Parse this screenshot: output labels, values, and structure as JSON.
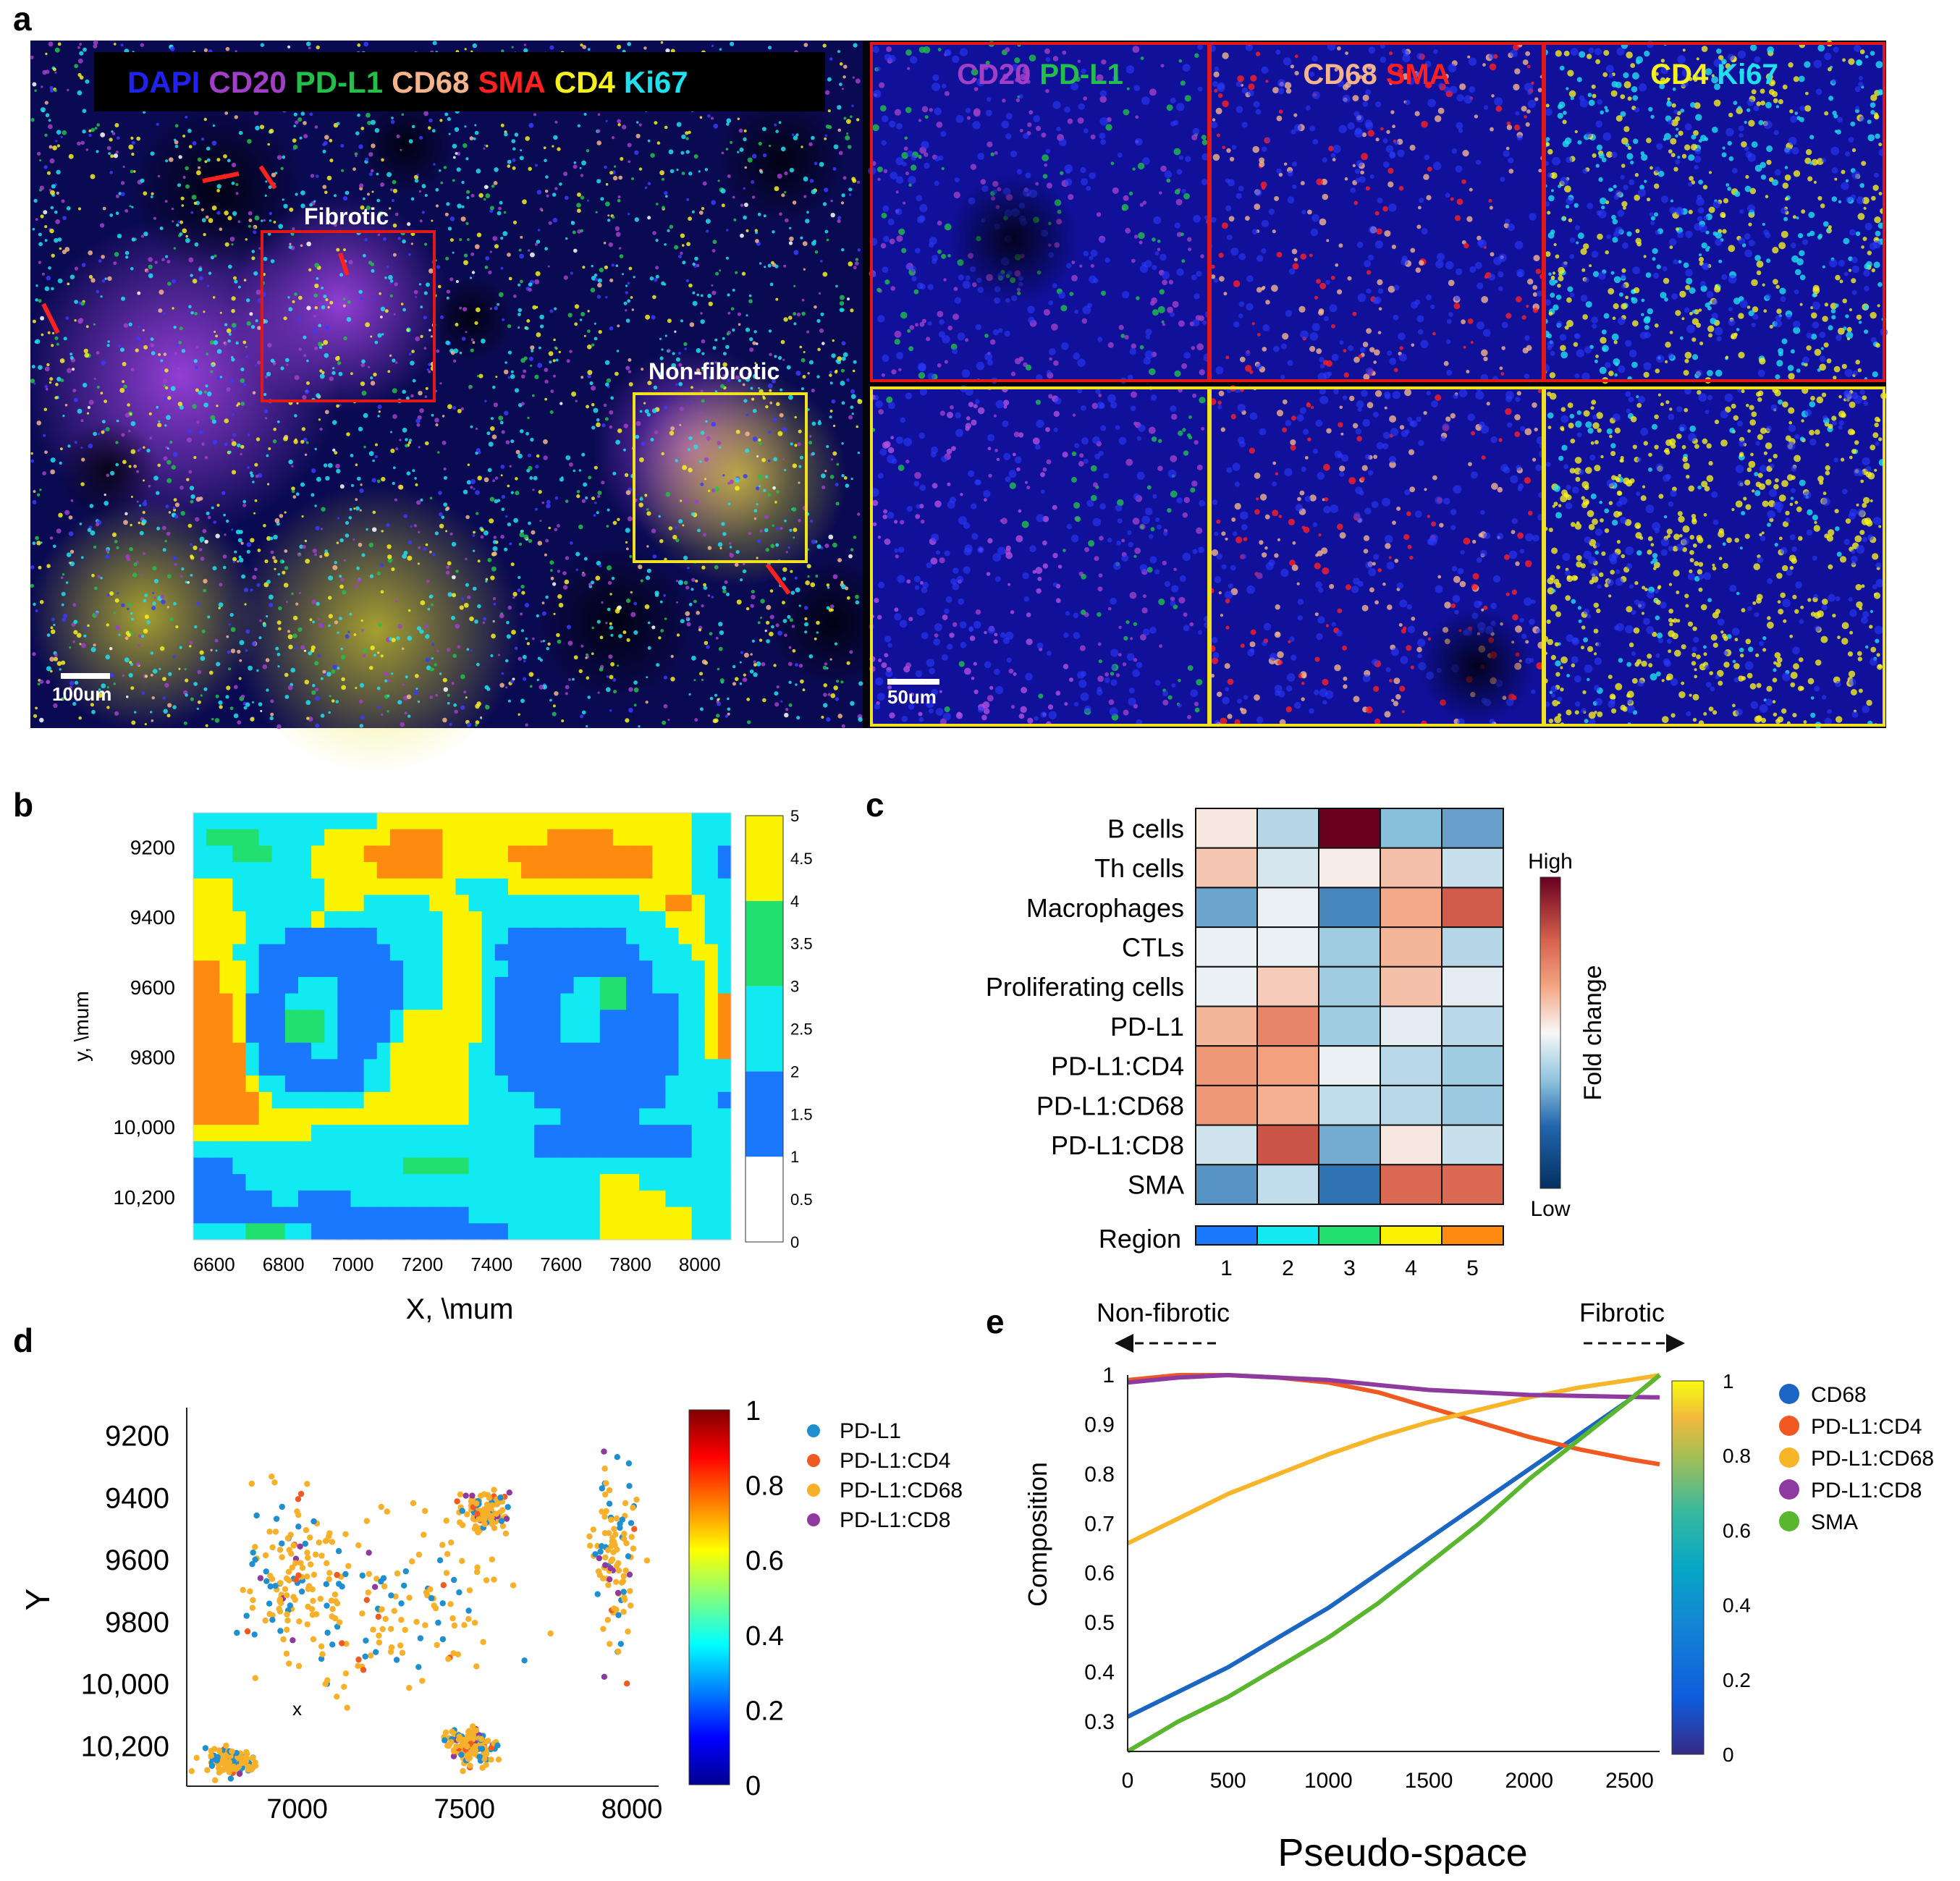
{
  "panel_letters": {
    "a": "a",
    "b": "b",
    "c": "c",
    "d": "d",
    "e": "e"
  },
  "panel_a": {
    "legend": [
      {
        "text": "DAPI",
        "color": "#2222ee"
      },
      {
        "text": "CD20",
        "color": "#a040c8"
      },
      {
        "text": "PD-L1",
        "color": "#22c04a"
      },
      {
        "text": "CD68",
        "color": "#f5b48c"
      },
      {
        "text": "SMA",
        "color": "#ff2020"
      },
      {
        "text": "CD4",
        "color": "#f5f020"
      },
      {
        "text": "Ki67",
        "color": "#20e0f0"
      }
    ],
    "roi_fibrotic_label": "Fibrotic",
    "roi_nonfibrotic_label": "Non-fibrotic",
    "scale_main": "100um",
    "scale_inset": "50um",
    "inset_headers": [
      [
        {
          "text": "CD20",
          "color": "#a040c8"
        },
        {
          "text": "PD-L1",
          "color": "#22c04a"
        }
      ],
      [
        {
          "text": "CD68",
          "color": "#f5b48c"
        },
        {
          "text": "SMA",
          "color": "#ff2020"
        }
      ],
      [
        {
          "text": "CD4",
          "color": "#f5f020"
        },
        {
          "text": "Ki67",
          "color": "#20e0f0"
        }
      ]
    ],
    "fibrotic_color": "#e01818",
    "nonfibrotic_color": "#f0e020"
  },
  "chart_data": [
    {
      "id": "b",
      "type": "heatmap",
      "xlabel": "X, \\mum",
      "ylabel": "y, \\mum",
      "xticks": [
        "6600",
        "6800",
        "7000",
        "7200",
        "7400",
        "7600",
        "7800",
        "8000"
      ],
      "yticks": [
        "9200",
        "9400",
        "9600",
        "9800",
        "10,000",
        "10,200"
      ],
      "xlim": [
        6540,
        8090
      ],
      "ylim": [
        9100,
        10320
      ],
      "colorbar_ticks": [
        "0",
        "0.5",
        "1",
        "1.5",
        "2",
        "2.5",
        "3",
        "3.5",
        "4",
        "4.5",
        "5"
      ],
      "region_colors": [
        "#ffffff",
        "#1a78ff",
        "#10eaf0",
        "#22e070",
        "#fbf200",
        "#ff8a10"
      ],
      "grid_rows": [
        "22222222222222444444444444444444444444222",
        "23333222224444455554444444455555444444222",
        "22233322244445555554444455555555555444221",
        "22222222244444555554444445555555555444221",
        "44422222224444444444222244444444444444222",
        "44422222224442222244422222222222224455422",
        "44442222242222222224442222222222222244422",
        "44442221111111222224442211111111122224422",
        "44422111111111122224442111111111112222442",
        "55442111111111112224442211111111111222242",
        "55442111222111112224442111111223311222242",
        "55541112222111112224442111112223311112245",
        "55541113332111124444442111112221111112245",
        "55541113332111124444442111112221111112245",
        "55552111122111244444422111111111111112245",
        "55552111111112244444422111111111111112222",
        "55554221111112244444422211111111111122222",
        "55555422222224444444422222111111111122221",
        "55555444444444444444422222221111112222222",
        "44444444422222222222222222111111111111222",
        "22222222222222222222222222111111111111222",
        "11122222222222223333322222222222222222222",
        "11112222222222222222222222222224442222222",
        "11111122111122222222222222222224444422222",
        "11111111111111111111122222222224444444222",
        "22223332211111111111111122222224444444222"
      ]
    },
    {
      "id": "c",
      "type": "heatmap",
      "rows": [
        "B cells",
        "Th cells",
        "Macrophages",
        "CTLs",
        "Proliferating cells",
        "PD-L1",
        "PD-L1:CD4",
        "PD-L1:CD68",
        "PD-L1:CD8",
        "SMA"
      ],
      "columns": [
        "1",
        "2",
        "3",
        "4",
        "5"
      ],
      "xlabel": "Region",
      "colorbar_high": "High",
      "colorbar_low": "Low",
      "colorbar_label": "Fold change",
      "values": [
        [
          0.06,
          -0.2,
          1.0,
          -0.32,
          -0.42
        ],
        [
          0.18,
          -0.1,
          0.04,
          0.2,
          -0.14
        ],
        [
          -0.4,
          -0.04,
          -0.5,
          0.28,
          0.62
        ],
        [
          -0.04,
          -0.04,
          -0.26,
          0.24,
          -0.2
        ],
        [
          -0.04,
          0.16,
          -0.26,
          0.2,
          -0.06
        ],
        [
          0.24,
          0.44,
          -0.26,
          -0.06,
          -0.18
        ],
        [
          0.36,
          0.32,
          -0.04,
          -0.18,
          -0.26
        ],
        [
          0.36,
          0.26,
          -0.16,
          -0.18,
          -0.28
        ],
        [
          -0.12,
          0.64,
          -0.38,
          0.06,
          -0.14
        ],
        [
          -0.46,
          -0.16,
          -0.56,
          0.56,
          0.56
        ]
      ],
      "region_colors": [
        "#1a78ff",
        "#10eaf0",
        "#22e070",
        "#fbf200",
        "#ff8a10"
      ]
    },
    {
      "id": "d",
      "type": "scatter",
      "xlabel": "",
      "ylabel": "Y",
      "xticks": [
        "7000",
        "7500",
        "8000"
      ],
      "yticks": [
        "9200",
        "9400",
        "9600",
        "9800",
        "10,000",
        "10,200"
      ],
      "xlim": [
        6670,
        8080
      ],
      "ylim": [
        9110,
        10330
      ],
      "annotation": "x",
      "colorbar_ticks": [
        "0",
        "0.2",
        "0.4",
        "0.6",
        "0.8",
        "1"
      ],
      "legend": [
        {
          "name": "PD-L1",
          "color": "#1f8fd0"
        },
        {
          "name": "PD-L1:CD4",
          "color": "#f05a22"
        },
        {
          "name": "PD-L1:CD68",
          "color": "#f7b02a"
        },
        {
          "name": "PD-L1:CD8",
          "color": "#8e3a9e"
        }
      ],
      "clusters": [
        {
          "x": 7000,
          "y": 9650,
          "sx": 260,
          "sy": 420
        },
        {
          "x": 7560,
          "y": 9450,
          "sx": 110,
          "sy": 100
        },
        {
          "x": 7520,
          "y": 10200,
          "sx": 110,
          "sy": 90
        },
        {
          "x": 7950,
          "y": 9600,
          "sx": 110,
          "sy": 420
        },
        {
          "x": 7300,
          "y": 9750,
          "sx": 500,
          "sy": 500
        },
        {
          "x": 6800,
          "y": 10250,
          "sx": 120,
          "sy": 70
        }
      ],
      "n_points": 760
    },
    {
      "id": "e",
      "type": "line",
      "xlabel": "Pseudo-space",
      "ylabel": "Composition",
      "arrow_left_label": "Non-fibrotic",
      "arrow_right_label": "Fibrotic",
      "xlim": [
        0,
        2650
      ],
      "ylim": [
        0.24,
        1.0
      ],
      "xticks": [
        "0",
        "500",
        "1000",
        "1500",
        "2000",
        "2500"
      ],
      "yticks": [
        "0.3",
        "0.4",
        "0.5",
        "0.6",
        "0.7",
        "0.8",
        "0.9",
        "1"
      ],
      "colorbar_ticks": [
        "0",
        "0.2",
        "0.4",
        "0.6",
        "0.8",
        "1"
      ],
      "x": [
        0,
        250,
        500,
        750,
        1000,
        1250,
        1500,
        1750,
        2000,
        2250,
        2500,
        2650
      ],
      "series": [
        {
          "name": "CD68",
          "color": "#1b66c2",
          "values": [
            0.31,
            0.36,
            0.41,
            0.47,
            0.53,
            0.6,
            0.67,
            0.74,
            0.81,
            0.88,
            0.95,
            1.0
          ]
        },
        {
          "name": "PD-L1:CD4",
          "color": "#f05a22",
          "values": [
            0.99,
            1.0,
            1.0,
            0.995,
            0.985,
            0.965,
            0.935,
            0.905,
            0.875,
            0.85,
            0.83,
            0.82
          ]
        },
        {
          "name": "PD-L1:CD68",
          "color": "#f7b52a",
          "values": [
            0.66,
            0.71,
            0.76,
            0.8,
            0.84,
            0.875,
            0.905,
            0.93,
            0.955,
            0.975,
            0.99,
            1.0
          ]
        },
        {
          "name": "PD-L1:CD8",
          "color": "#8e3a9e",
          "values": [
            0.985,
            0.995,
            1.0,
            0.995,
            0.99,
            0.98,
            0.97,
            0.965,
            0.96,
            0.958,
            0.956,
            0.955
          ]
        },
        {
          "name": "SMA",
          "color": "#5ab62e",
          "values": [
            0.24,
            0.3,
            0.35,
            0.41,
            0.47,
            0.54,
            0.62,
            0.7,
            0.79,
            0.87,
            0.95,
            1.0
          ]
        }
      ]
    }
  ]
}
